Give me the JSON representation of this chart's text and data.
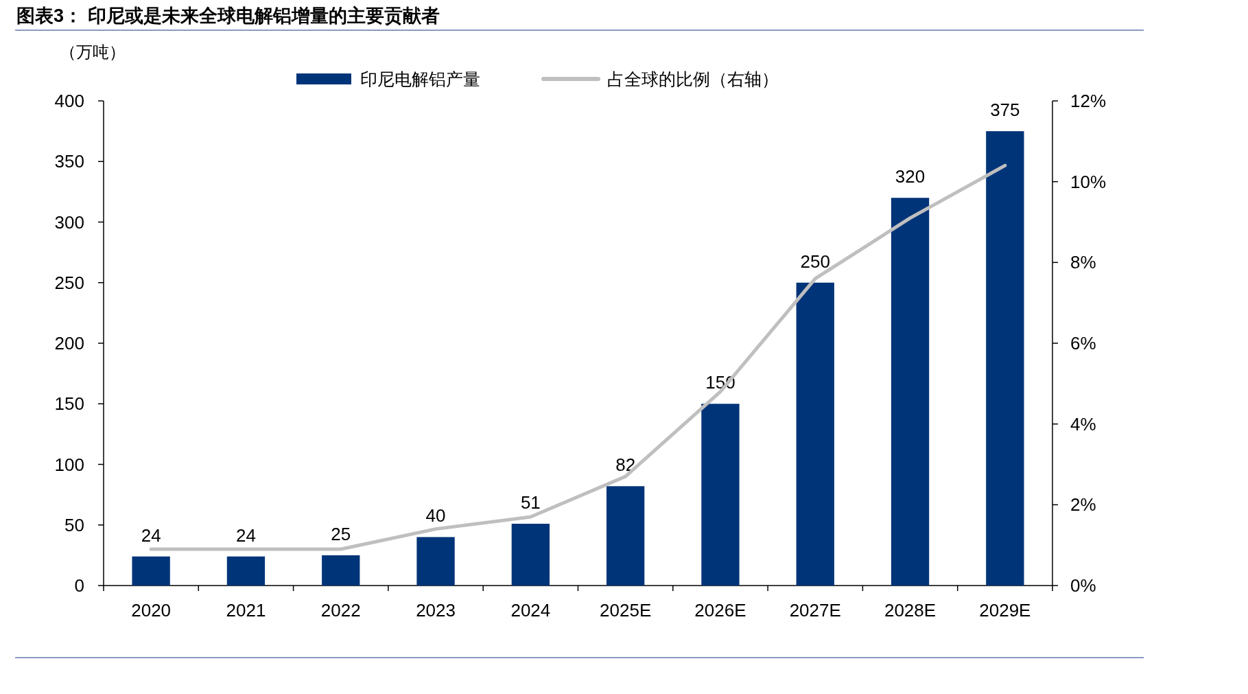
{
  "chart_data": {
    "type": "bar",
    "title": "图表3：  印尼或是未来全球电解铝增量的主要贡献者",
    "ylabel": "（万吨）",
    "categories": [
      "2020",
      "2021",
      "2022",
      "2023",
      "2024",
      "2025E",
      "2026E",
      "2027E",
      "2028E",
      "2029E"
    ],
    "series": [
      {
        "name": "印尼电解铝产量",
        "color": "#003478",
        "values": [
          24,
          24,
          25,
          40,
          51,
          82,
          150,
          250,
          320,
          375
        ],
        "data_labels": true
      },
      {
        "name": "占全球的比例（右轴）",
        "type": "line",
        "axis": "y2",
        "color": "#bfbfbf",
        "values": [
          0.9,
          0.9,
          0.9,
          1.4,
          1.7,
          2.7,
          4.8,
          7.6,
          9.1,
          10.4
        ]
      }
    ],
    "ylim": [
      0,
      400
    ],
    "yticks": [
      0,
      50,
      100,
      150,
      200,
      250,
      300,
      350,
      400
    ],
    "y2lim": [
      0,
      12
    ],
    "y2ticks": [
      {
        "value": 0,
        "label": "0%"
      },
      {
        "value": 2,
        "label": "2%"
      },
      {
        "value": 4,
        "label": "4%"
      },
      {
        "value": 6,
        "label": "6%"
      },
      {
        "value": 8,
        "label": "8%"
      },
      {
        "value": 10,
        "label": "10%"
      },
      {
        "value": 12,
        "label": "12%"
      }
    ],
    "legend": "top",
    "grid": false,
    "marker": "none",
    "line_style": "solid"
  }
}
